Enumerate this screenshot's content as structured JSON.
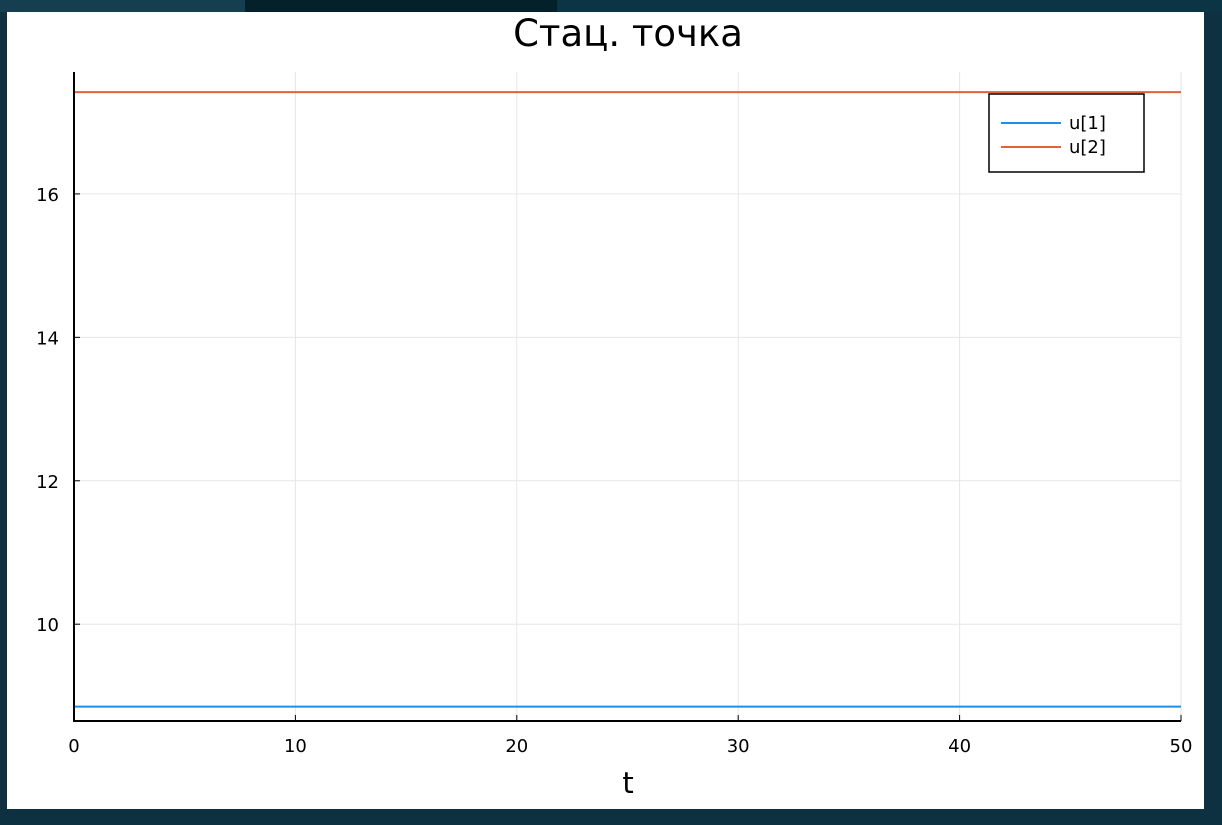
{
  "chart_data": {
    "type": "line",
    "title": "Стац. точка",
    "xlabel": "t",
    "ylabel": "",
    "xlim": [
      0,
      50
    ],
    "ylim": [
      8.65,
      17.7
    ],
    "xticks": [
      0,
      10,
      20,
      30,
      40,
      50
    ],
    "yticks": [
      10,
      12,
      14,
      16
    ],
    "grid": true,
    "legend_position": "top-right",
    "series": [
      {
        "name": "u[1]",
        "color": "#1f8fe6",
        "x": [
          0,
          50
        ],
        "y": [
          8.85,
          8.85
        ]
      },
      {
        "name": "u[2]",
        "color": "#e0623a",
        "x": [
          0,
          50
        ],
        "y": [
          17.42,
          17.42
        ]
      }
    ]
  }
}
